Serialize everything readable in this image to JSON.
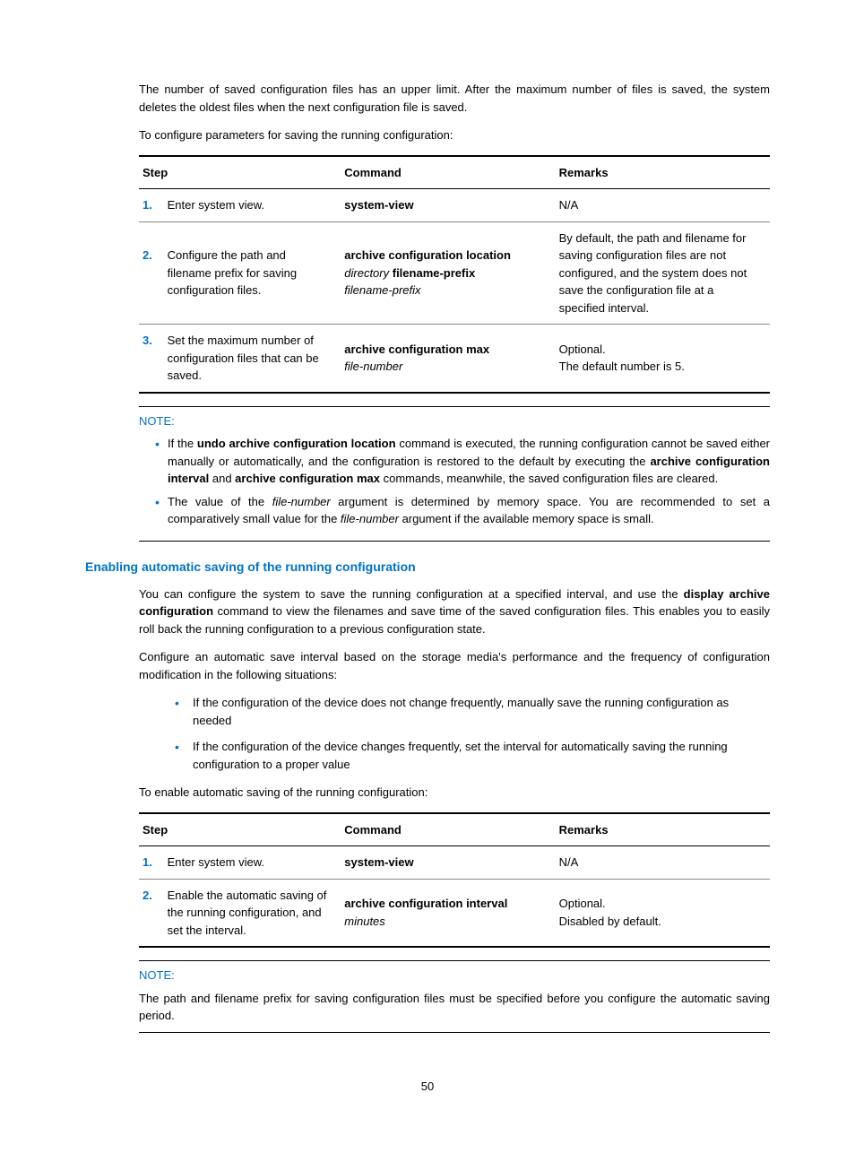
{
  "intro": {
    "p1": "The number of saved configuration files has an upper limit. After the maximum number of files is saved, the system deletes the oldest files when the next configuration file is saved.",
    "p2": "To configure parameters for saving the running configuration:"
  },
  "table1": {
    "headers": {
      "step": "Step",
      "command": "Command",
      "remarks": "Remarks"
    },
    "rows": [
      {
        "num": "1.",
        "desc": "Enter system view.",
        "cmd_bold": "system-view",
        "cmd_plain": "",
        "remarks": "N/A"
      },
      {
        "num": "2.",
        "desc": "Configure the path and filename prefix for saving configuration files.",
        "cmd_line1_bold": "archive configuration location",
        "cmd_line2_italic": "directory",
        "cmd_line2_bold": " filename-prefix",
        "cmd_line3_italic": "filename-prefix",
        "remarks": "By default, the path and filename for saving configuration files are not configured, and the system does not save the configuration file at a specified interval."
      },
      {
        "num": "3.",
        "desc": "Set the maximum number of configuration files that can be saved.",
        "cmd_line1_bold": "archive configuration max",
        "cmd_line2_italic": "file-number",
        "remarks_l1": "Optional.",
        "remarks_l2": "The default number is 5."
      }
    ]
  },
  "note1": {
    "title": "NOTE:",
    "b1_a": "If the ",
    "b1_bold1": "undo archive configuration location",
    "b1_b": " command is executed, the running configuration cannot be saved either manually or automatically, and the configuration is restored to the default by executing the ",
    "b1_bold2": "archive configuration interval",
    "b1_c": " and ",
    "b1_bold3": "archive configuration max",
    "b1_d": " commands, meanwhile, the saved configuration files are cleared.",
    "b2_a": "The value of the ",
    "b2_it1": "file-number",
    "b2_b": " argument is determined by memory space. You are recommended to set a comparatively small value for the ",
    "b2_it2": "file-number",
    "b2_c": " argument if the available memory space is small."
  },
  "section": {
    "title": "Enabling automatic saving of the running configuration",
    "p1_a": "You can configure the system to save the running configuration at a specified interval, and use the ",
    "p1_bold": "display archive configuration",
    "p1_b": " command to view the filenames and save time of the saved configuration files. This enables you to easily roll back the running configuration to a previous configuration state.",
    "p2": "Configure an automatic save interval based on the storage media's performance and the frequency of configuration modification in the following situations:",
    "li1": "If the configuration of the device does not change frequently, manually save the running configuration as needed",
    "li2": "If the configuration of the device changes frequently, set the interval for automatically saving the running configuration to a proper value",
    "p3": "To enable automatic saving of the running configuration:"
  },
  "table2": {
    "headers": {
      "step": "Step",
      "command": "Command",
      "remarks": "Remarks"
    },
    "rows": [
      {
        "num": "1.",
        "desc": "Enter system view.",
        "cmd_bold": "system-view",
        "remarks": "N/A"
      },
      {
        "num": "2.",
        "desc": "Enable the automatic saving of the running configuration, and set the interval.",
        "cmd_line1_bold": "archive configuration interval",
        "cmd_line2_italic": "minutes",
        "remarks_l1": "Optional.",
        "remarks_l2": "Disabled by default."
      }
    ]
  },
  "note2": {
    "title": "NOTE:",
    "text": "The path and filename prefix for saving configuration files must be specified before you configure the automatic saving period."
  },
  "pagenum": "50"
}
